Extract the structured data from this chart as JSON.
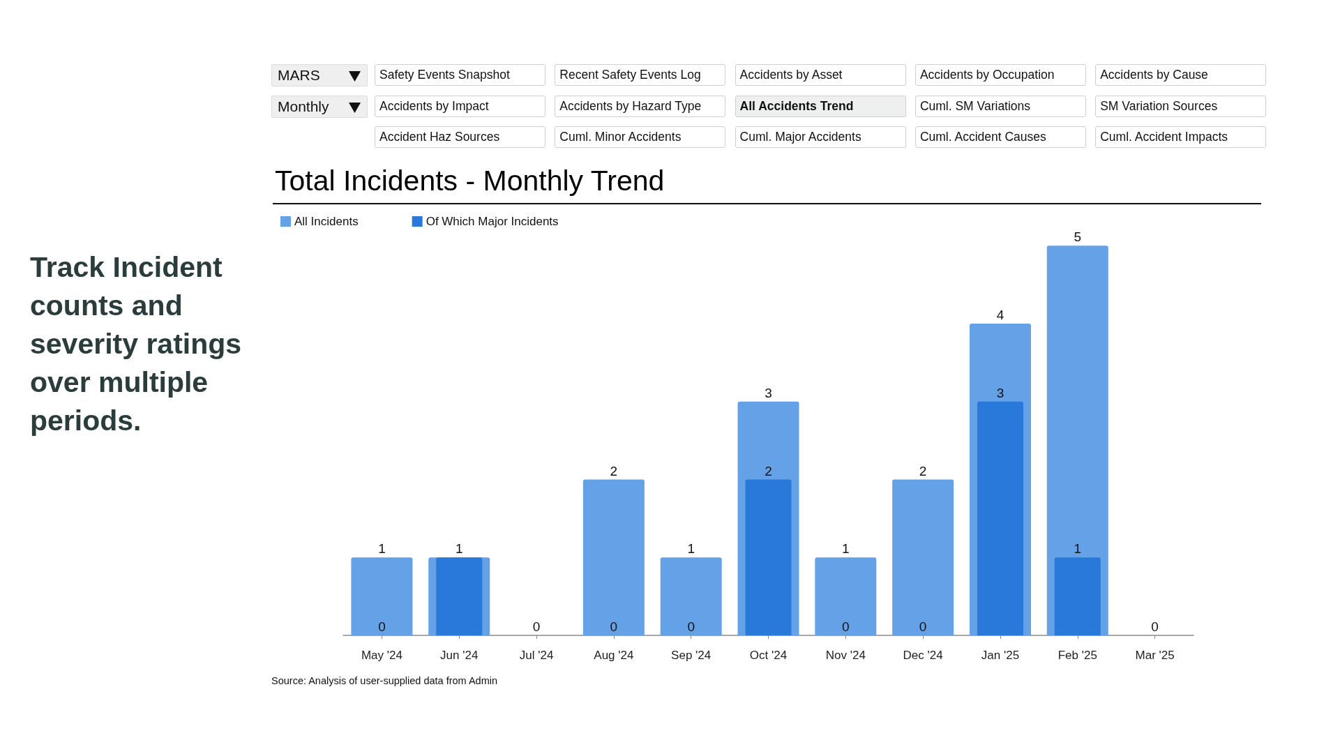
{
  "chart_data": {
    "type": "bar",
    "title": "Total Incidents - Monthly Trend",
    "categories": [
      "May '24",
      "Jun '24",
      "Jul '24",
      "Aug '24",
      "Sep '24",
      "Oct '24",
      "Nov '24",
      "Dec '24",
      "Jan '25",
      "Feb '25",
      "Mar '25"
    ],
    "series": [
      {
        "name": "All Incidents",
        "color": "#64a1e7",
        "values": [
          1,
          1,
          0,
          2,
          1,
          3,
          1,
          2,
          4,
          5,
          0
        ],
        "value_labels": [
          "1",
          "1",
          "0",
          "2",
          "1",
          "3",
          "1",
          "2",
          "4",
          "5",
          "0"
        ]
      },
      {
        "name": "Of Which Major Incidents",
        "color": "#2879da",
        "values": [
          0,
          1,
          0,
          0,
          0,
          2,
          0,
          0,
          3,
          1,
          0
        ],
        "value_labels": [
          "0",
          null,
          null,
          "0",
          "0",
          "2",
          "0",
          "0",
          "3",
          "1",
          null
        ]
      }
    ],
    "legend": "top left",
    "tick_labels": "x",
    "annotations": [
      "MARS",
      "Monthly",
      "Safety Events Snapshot",
      "Recent Safety Events Log",
      "Accidents by Asset",
      "Accidents by Occupation",
      "Accidents by Cause",
      "Accidents by Impact",
      "Accidents by Hazard Type",
      "All Accidents Trend",
      "Cuml. SM Variations",
      "SM Variation Sources",
      "Accident Haz Sources",
      "Cuml. Minor Accidents",
      "Cuml. Major Accidents",
      "Cuml. Accident Causes",
      "Cuml. Accident Impacts",
      "Track Incident counts and severity ratings over multiple periods.",
      "Source: Analysis of user-supplied data from Admin"
    ]
  }
}
